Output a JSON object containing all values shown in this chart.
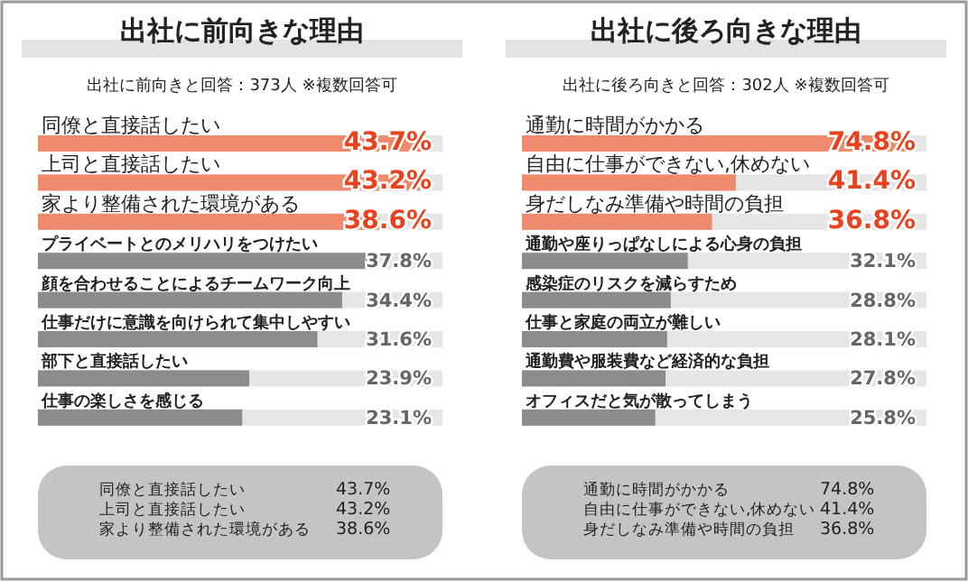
{
  "chart_data": [
    {
      "type": "bar",
      "orientation": "horizontal",
      "title": "出社に前向きな理由",
      "subtitle": "出社に前向きと回答：373人 ※複数回答可",
      "categories": [
        "同僚と直接話したい",
        "上司と直接話したい",
        "家より整備された環境がある",
        "プライベートとのメリハリをつけたい",
        "顔を合わせることによるチームワーク向上",
        "仕事だけに意識を向けられて集中しやすい",
        "部下と直接話したい",
        "仕事の楽しさを感じる"
      ],
      "values": [
        43.7,
        43.2,
        38.6,
        37.8,
        34.4,
        31.6,
        23.9,
        23.1
      ],
      "value_labels": [
        "43.7%",
        "43.2%",
        "38.6%",
        "37.8%",
        "34.4%",
        "31.6%",
        "23.9%",
        "23.1%"
      ],
      "colors": [
        "#f08a6c",
        "#f08a6c",
        "#f08a6c",
        "#8c8c8c",
        "#8c8c8c",
        "#8c8c8c",
        "#8c8c8c",
        "#8c8c8c"
      ],
      "annotations": [
        "同僚と直接話したい 43.7%",
        "上司と直接話したい 43.2%",
        "家より整備された環境がある 38.6%"
      ]
    },
    {
      "type": "bar",
      "orientation": "horizontal",
      "title": "出社に後ろ向きな理由",
      "subtitle": "出社に後ろ向きと回答：302人 ※複数回答可",
      "categories": [
        "通勤に時間がかかる",
        "自由に仕事ができない,休めない",
        "身だしなみ準備や時間の負担",
        "通勤や座りっぱなしによる心身の負担",
        "感染症のリスクを減らすため",
        "仕事と家庭の両立が難しい",
        "通勤費や服装費など経済的な負担",
        "オフィスだと気が散ってしまう"
      ],
      "values": [
        74.8,
        41.4,
        36.8,
        32.1,
        28.8,
        28.1,
        27.8,
        25.8
      ],
      "value_labels": [
        "74.8%",
        "41.4%",
        "36.8%",
        "32.1%",
        "28.8%",
        "28.1%",
        "27.8%",
        "25.8%"
      ],
      "colors": [
        "#f08a6c",
        "#f08a6c",
        "#f08a6c",
        "#8c8c8c",
        "#8c8c8c",
        "#8c8c8c",
        "#8c8c8c",
        "#8c8c8c"
      ],
      "annotations": [
        "通勤に時間がかかる 74.8%",
        "自由に仕事ができない,休めない 41.4%",
        "身だしなみ準備や時間の負担 36.8%"
      ]
    }
  ]
}
